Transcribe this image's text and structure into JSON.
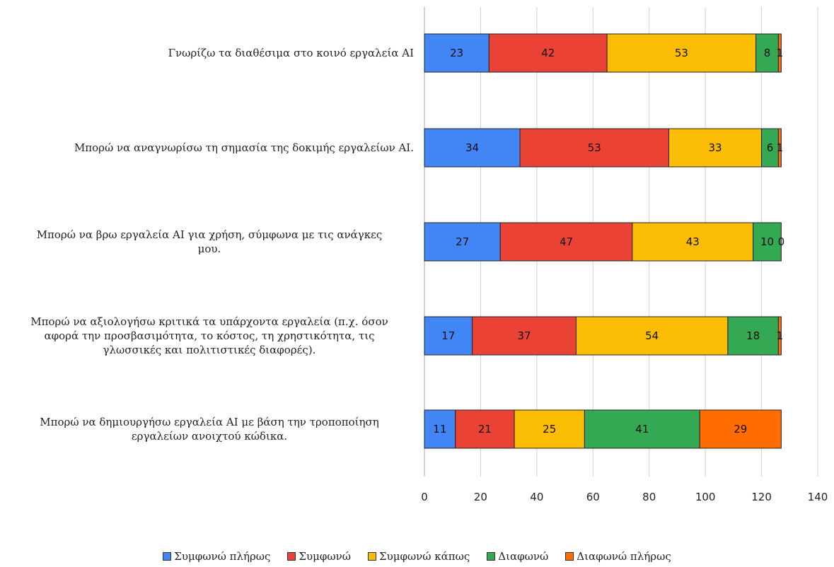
{
  "chart_data": {
    "type": "bar",
    "orientation": "horizontal",
    "stacked": true,
    "title": "",
    "xlabel": "",
    "ylabel": "",
    "xlim": [
      0,
      140
    ],
    "x_ticks": [
      "0",
      "20",
      "40",
      "60",
      "80",
      "100",
      "120",
      "140"
    ],
    "grid": true,
    "legend_position": "bottom",
    "categories": [
      [
        "Γνωρίζω τα διαθέσιμα στο κοινό εργαλεία AI"
      ],
      [
        "Μπορώ να αναγνωρίσω τη σημασία της δοκιμής εργαλείων AI."
      ],
      [
        "Μπορώ να βρω εργαλεία AI για χρήση, σύμφωνα με τις ανάγκες",
        "μου."
      ],
      [
        "Μπορώ να αξιολογήσω κριτικά τα υπάρχοντα εργαλεία (π.χ. όσον",
        "αφορά την προσβασιμότητα, το κόστος, τη χρηστικότητα, τις",
        "γλωσσικές και πολιτιστικές διαφορές)."
      ],
      [
        "Μπορώ να δημιουργήσω εργαλεία AI με βάση την τροποποίηση",
        "εργαλείων ανοιχτού κώδικα."
      ]
    ],
    "series": [
      {
        "name": "Συμφωνώ πλήρως",
        "color": "#4285f4",
        "values": [
          23,
          34,
          27,
          17,
          11
        ]
      },
      {
        "name": "Συμφωνώ",
        "color": "#ea4335",
        "values": [
          42,
          53,
          47,
          37,
          21
        ]
      },
      {
        "name": "Συμφωνώ κάπως",
        "color": "#fbbc04",
        "values": [
          53,
          33,
          43,
          54,
          25
        ]
      },
      {
        "name": "Διαφωνώ",
        "color": "#34a853",
        "values": [
          8,
          6,
          10,
          18,
          41
        ]
      },
      {
        "name": "Διαφωνώ πλήρως",
        "color": "#ff6d01",
        "values": [
          1,
          1,
          0,
          1,
          29
        ]
      }
    ]
  }
}
